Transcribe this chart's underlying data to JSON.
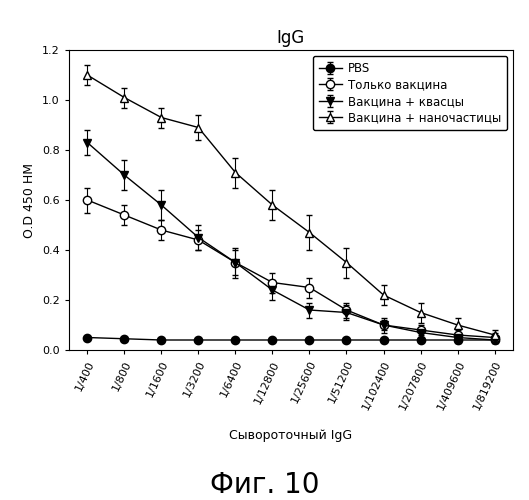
{
  "title": "IgG",
  "xlabel": "Сывороточный IgG",
  "ylabel": "O.D 450 НМ",
  "caption": "Фиг. 10",
  "x_labels": [
    "1/400",
    "1/800",
    "1/1600",
    "1/3200",
    "1/6400",
    "1/12800",
    "1/25600",
    "1/51200",
    "1/102400",
    "1/207800",
    "1/409600",
    "1/819200"
  ],
  "x_values": [
    1,
    2,
    3,
    4,
    5,
    6,
    7,
    8,
    9,
    10,
    11,
    12
  ],
  "series": [
    {
      "label": "PBS",
      "y": [
        0.05,
        0.045,
        0.04,
        0.04,
        0.04,
        0.04,
        0.04,
        0.04,
        0.04,
        0.04,
        0.04,
        0.04
      ],
      "yerr": [
        0.005,
        0.005,
        0.005,
        0.005,
        0.005,
        0.005,
        0.005,
        0.005,
        0.005,
        0.005,
        0.005,
        0.005
      ],
      "marker": "o",
      "fillstyle": "full",
      "color": "black",
      "linestyle": "-"
    },
    {
      "label": "Только вакцина",
      "y": [
        0.6,
        0.54,
        0.48,
        0.44,
        0.35,
        0.27,
        0.25,
        0.16,
        0.1,
        0.08,
        0.06,
        0.05
      ],
      "yerr": [
        0.05,
        0.04,
        0.04,
        0.04,
        0.05,
        0.04,
        0.04,
        0.03,
        0.03,
        0.02,
        0.02,
        0.02
      ],
      "marker": "o",
      "fillstyle": "none",
      "color": "black",
      "linestyle": "-"
    },
    {
      "label": "Вакцина + квасцы",
      "y": [
        0.83,
        0.7,
        0.58,
        0.45,
        0.35,
        0.24,
        0.16,
        0.15,
        0.1,
        0.07,
        0.05,
        0.04
      ],
      "yerr": [
        0.05,
        0.06,
        0.06,
        0.05,
        0.06,
        0.04,
        0.03,
        0.03,
        0.02,
        0.02,
        0.02,
        0.01
      ],
      "marker": "v",
      "fillstyle": "full",
      "color": "black",
      "linestyle": "-"
    },
    {
      "label": "Вакцина + наночастицы",
      "y": [
        1.1,
        1.01,
        0.93,
        0.89,
        0.71,
        0.58,
        0.47,
        0.35,
        0.22,
        0.15,
        0.1,
        0.06
      ],
      "yerr": [
        0.04,
        0.04,
        0.04,
        0.05,
        0.06,
        0.06,
        0.07,
        0.06,
        0.04,
        0.04,
        0.03,
        0.02
      ],
      "marker": "^",
      "fillstyle": "none",
      "color": "black",
      "linestyle": "-"
    }
  ],
  "ylim": [
    0,
    1.2
  ],
  "yticks": [
    0.0,
    0.2,
    0.4,
    0.6,
    0.8,
    1.0,
    1.2
  ],
  "background_color": "#ffffff",
  "title_fontsize": 12,
  "label_fontsize": 9,
  "tick_fontsize": 8,
  "legend_fontsize": 8.5,
  "caption_fontsize": 20
}
